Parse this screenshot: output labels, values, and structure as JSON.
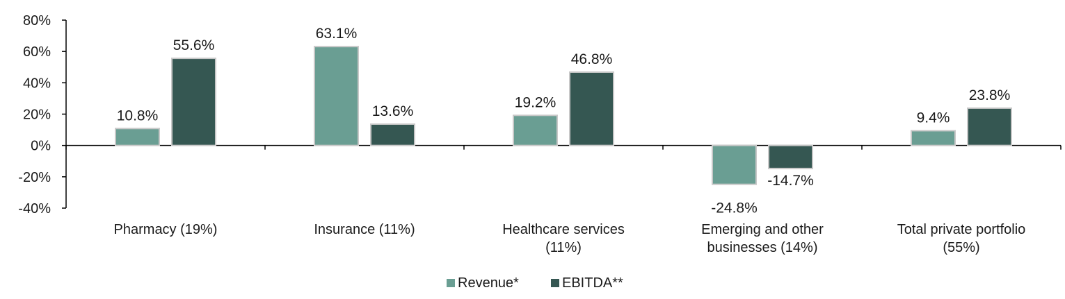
{
  "chart_data": {
    "type": "bar",
    "title": "",
    "xlabel": "",
    "ylabel": "",
    "ylim": [
      -40,
      80
    ],
    "yticks": [
      80,
      60,
      40,
      20,
      0,
      -20,
      -40
    ],
    "ytick_labels": [
      "80%",
      "60%",
      "40%",
      "20%",
      "0%",
      "-20%",
      "-40%"
    ],
    "categories": [
      [
        "Pharmacy (19%)"
      ],
      [
        "Insurance (11%)"
      ],
      [
        "Healthcare services",
        "(11%)"
      ],
      [
        "Emerging and other",
        "businesses (14%)"
      ],
      [
        "Total private portfolio",
        "(55%)"
      ]
    ],
    "series": [
      {
        "name": "Revenue*",
        "color": "#6a9e93",
        "values": [
          10.8,
          63.1,
          19.2,
          -24.8,
          9.4
        ],
        "labels": [
          "10.8%",
          "63.1%",
          "19.2%",
          "-24.8%",
          "9.4%"
        ]
      },
      {
        "name": "EBITDA**",
        "color": "#355752",
        "values": [
          55.6,
          13.6,
          46.8,
          -14.7,
          23.8
        ],
        "labels": [
          "55.6%",
          "13.6%",
          "46.8%",
          "-14.7%",
          "23.8%"
        ]
      }
    ],
    "legend": {
      "position": "bottom-center"
    },
    "grid": false
  }
}
